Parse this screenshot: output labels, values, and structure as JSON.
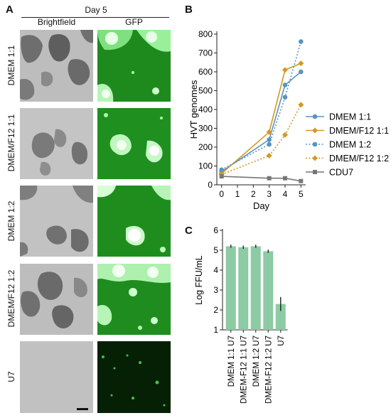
{
  "panel_a": {
    "label": "A",
    "day_label": "Day 5",
    "col_brightfield": "Brightfield",
    "col_gfp": "GFP",
    "rows": [
      "DMEM 1:1",
      "DMEM/F12 1:1",
      "DMEM 1:2",
      "DMEM/F12 1:2",
      "U7"
    ],
    "colors": {
      "brightfield_bg": "#b9b9b9",
      "gfp_bg": "#1e8a1e",
      "gfp_bright": "#d8ffd8",
      "u7_gfp_bg": "#052005"
    }
  },
  "panel_b": {
    "label": "B"
  },
  "panel_c": {
    "label": "C"
  },
  "chart_data": [
    {
      "type": "line",
      "ylabel": "HVT genomes",
      "xlabel": "Day",
      "x_ticks": [
        0,
        1,
        2,
        3,
        4,
        5
      ],
      "y_ticks": [
        0,
        100,
        200,
        300,
        400,
        500,
        600,
        700,
        800
      ],
      "xlim": [
        -0.3,
        5.3
      ],
      "ylim": [
        0,
        800
      ],
      "legend_position": "right",
      "series": [
        {
          "name": "DMEM 1:1",
          "color": "#5b93bf",
          "marker": "circle",
          "dash": "solid",
          "x": [
            0,
            3,
            4,
            5
          ],
          "y": [
            70,
            240,
            530,
            600
          ]
        },
        {
          "name": "DMEM/F12 1:1",
          "color": "#d29a22",
          "marker": "diamond",
          "dash": "solid",
          "x": [
            0,
            3,
            4,
            5
          ],
          "y": [
            60,
            280,
            610,
            645
          ]
        },
        {
          "name": "DMEM 1:2",
          "color": "#5b93bf",
          "marker": "circle",
          "dash": "dotted",
          "x": [
            0,
            3,
            4,
            5
          ],
          "y": [
            80,
            215,
            465,
            760
          ]
        },
        {
          "name": "DMEM/F12 1:2",
          "color": "#d29a22",
          "marker": "diamond",
          "dash": "dotted",
          "x": [
            0,
            3,
            4,
            5
          ],
          "y": [
            55,
            155,
            265,
            425
          ]
        },
        {
          "name": "CDU7",
          "color": "#777777",
          "marker": "square",
          "dash": "solid",
          "x": [
            0,
            3,
            4,
            5
          ],
          "y": [
            45,
            35,
            35,
            20
          ]
        }
      ]
    },
    {
      "type": "bar",
      "ylabel": "Log FFU/mL",
      "categories": [
        "DMEM 1:1 U7",
        "DMEM-F12 1:1 U7",
        "DMEM 1:2 U7",
        "DMEM-F12 1:2 U7",
        "U7"
      ],
      "values": [
        5.2,
        5.15,
        5.2,
        4.95,
        2.3
      ],
      "errors": [
        0.08,
        0.08,
        0.08,
        0.08,
        0.35
      ],
      "y_ticks": [
        1,
        2,
        3,
        4,
        5,
        6
      ],
      "ylim": [
        1,
        6
      ],
      "color": "#8ccba4"
    }
  ]
}
